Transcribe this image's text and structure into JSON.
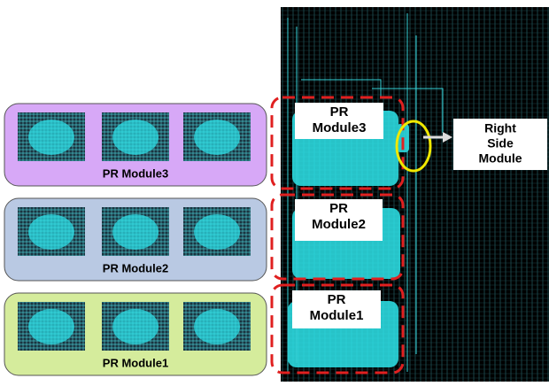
{
  "left_panels": [
    {
      "label": "PR Module3"
    },
    {
      "label": "PR Module2"
    },
    {
      "label": "PR Module1"
    }
  ],
  "regions": [
    {
      "label_lines": [
        "PR",
        "Module3"
      ]
    },
    {
      "label_lines": [
        "PR",
        "Module2"
      ]
    },
    {
      "label_lines": [
        "PR",
        "Module1"
      ]
    }
  ],
  "callout": {
    "label_lines": [
      "Right",
      "Side",
      "Module"
    ]
  }
}
